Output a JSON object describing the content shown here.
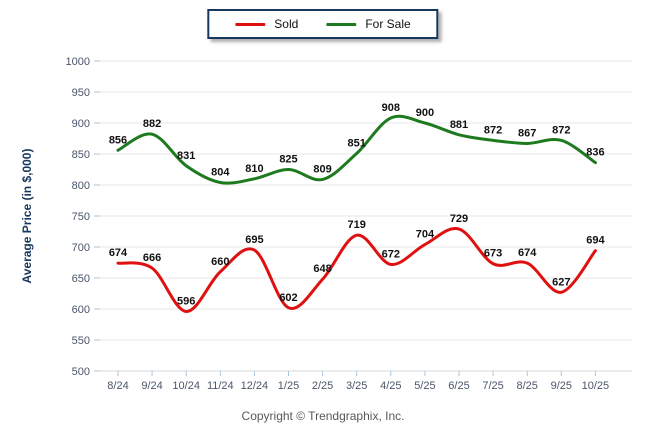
{
  "chart_data": {
    "type": "line",
    "title": "",
    "ylabel": "Average Price (in $,000)",
    "xlabel": "",
    "ylim": [
      500,
      1000
    ],
    "ytick_step": 50,
    "grid": true,
    "legend_position": "top-center",
    "categories": [
      "8/24",
      "9/24",
      "10/24",
      "11/24",
      "12/24",
      "1/25",
      "2/25",
      "3/25",
      "4/25",
      "5/25",
      "6/25",
      "7/25",
      "8/25",
      "9/25",
      "10/25"
    ],
    "series": [
      {
        "name": "Sold",
        "color": "#e01010",
        "values": [
          674,
          666,
          596,
          660,
          695,
          602,
          648,
          719,
          672,
          704,
          729,
          673,
          674,
          627,
          694
        ]
      },
      {
        "name": "For Sale",
        "color": "#1e7a1e",
        "values": [
          856,
          882,
          831,
          804,
          810,
          825,
          809,
          851,
          908,
          900,
          881,
          872,
          867,
          872,
          836
        ]
      }
    ]
  },
  "footer": {
    "text": "Copyright © Trendgraphix, Inc."
  },
  "style": {
    "grid_color": "#e7e7e7",
    "axis_line_color": "#d9d9d9",
    "tick_color": "#a9c6e0",
    "axis_text_color": "#4a566b",
    "label_color": "#111111",
    "legend_border": "#17375e"
  }
}
